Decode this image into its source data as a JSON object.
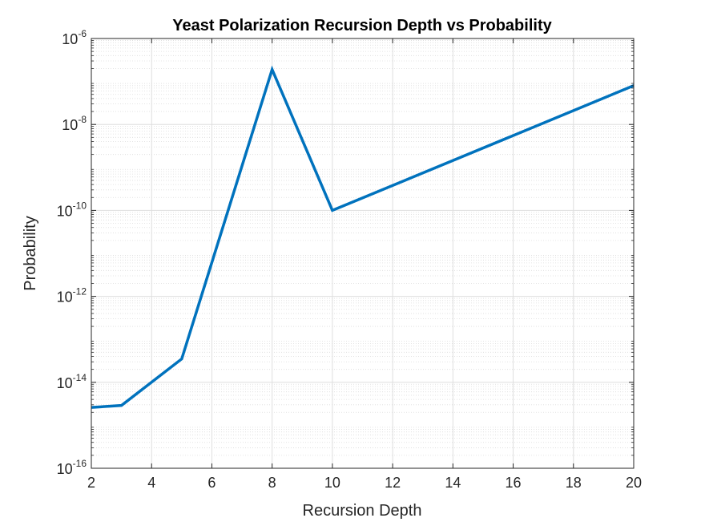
{
  "chart_data": {
    "type": "line",
    "title": "Yeast Polarization Recursion Depth vs Probability",
    "xlabel": "Recursion Depth",
    "ylabel": "Probability",
    "xlim": [
      2,
      20
    ],
    "ylim": [
      1e-16,
      1e-06
    ],
    "yscale": "log",
    "grid": true,
    "minor_grid": true,
    "line_color": "#0072BD",
    "x_ticks": [
      2,
      4,
      6,
      8,
      10,
      12,
      14,
      16,
      18,
      20
    ],
    "y_ticks": [
      {
        "base": "10",
        "exp": "-16"
      },
      {
        "base": "10",
        "exp": "-14"
      },
      {
        "base": "10",
        "exp": "-12"
      },
      {
        "base": "10",
        "exp": "-10"
      },
      {
        "base": "10",
        "exp": "-8"
      },
      {
        "base": "10",
        "exp": "-6"
      }
    ],
    "series": [
      {
        "x": [
          2,
          3,
          5,
          8,
          10,
          20
        ],
        "y": [
          2.6e-15,
          2.9e-15,
          3.5e-14,
          1.9e-07,
          1e-10,
          8e-08
        ]
      }
    ]
  }
}
